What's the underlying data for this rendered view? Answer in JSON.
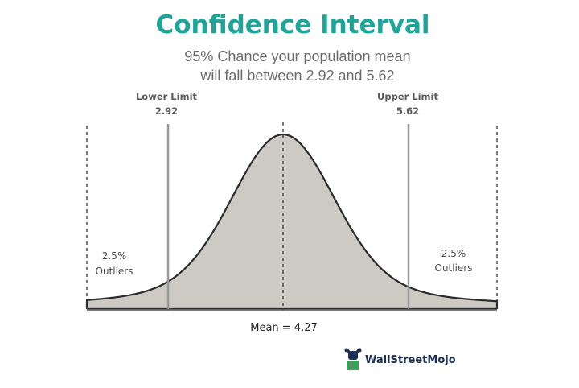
{
  "title": "Confidence Interval",
  "subtitle": {
    "line1": "95% Chance your population mean",
    "line2": "will fall between 2.92 and 5.62"
  },
  "lower_limit": {
    "title": "Lower Limit",
    "value": "2.92"
  },
  "upper_limit": {
    "title": "Upper Limit",
    "value": "5.62"
  },
  "left_outliers": {
    "percent": "2.5%",
    "label": "Outliers"
  },
  "right_outliers": {
    "percent": "2.5%",
    "label": "Outliers"
  },
  "mean_label": "Mean = 4.27",
  "brand": {
    "name": "WallStreetMojo",
    "icon": "wallstreetmojo-logo-icon"
  },
  "colors": {
    "title": "#1fa49a",
    "curve_fill": "#cdcac4",
    "curve_stroke": "#2a2a2a",
    "limit_line": "#9a9a9a",
    "brand_green": "#2ea84f",
    "brand_navy": "#1e2f55"
  }
}
